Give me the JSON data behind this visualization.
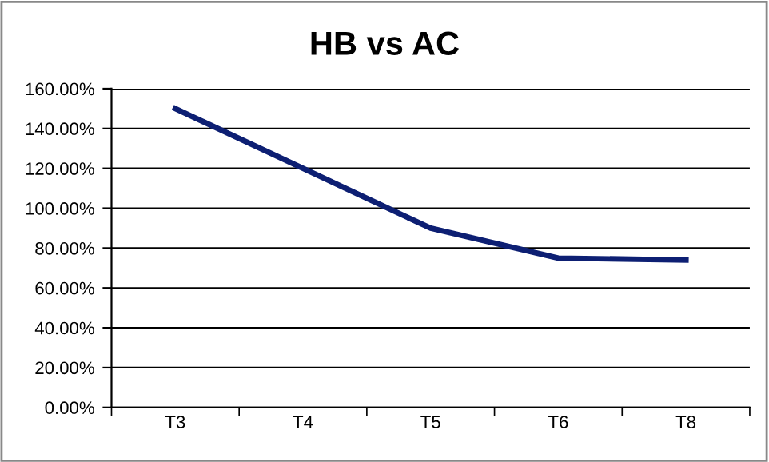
{
  "chart_data": {
    "type": "line",
    "title": "HB vs AC",
    "categories": [
      "T3",
      "T4",
      "T5",
      "T6",
      "T8"
    ],
    "series": [
      {
        "color": "#0d1f73",
        "values": [
          150,
          120,
          90,
          75,
          74
        ]
      }
    ],
    "ylim": [
      0,
      160
    ],
    "yticks": [
      {
        "value": 0,
        "label": "0.00%"
      },
      {
        "value": 20,
        "label": "20.00%"
      },
      {
        "value": 40,
        "label": "40.00%"
      },
      {
        "value": 60,
        "label": "60.00%"
      },
      {
        "value": 80,
        "label": "80.00%"
      },
      {
        "value": 100,
        "label": "100.00%"
      },
      {
        "value": 120,
        "label": "120.00%"
      },
      {
        "value": 140,
        "label": "140.00%"
      },
      {
        "value": 160,
        "label": "160.00%"
      }
    ],
    "grid": "y",
    "legend": false,
    "marker": "none",
    "line_style": "solid"
  }
}
